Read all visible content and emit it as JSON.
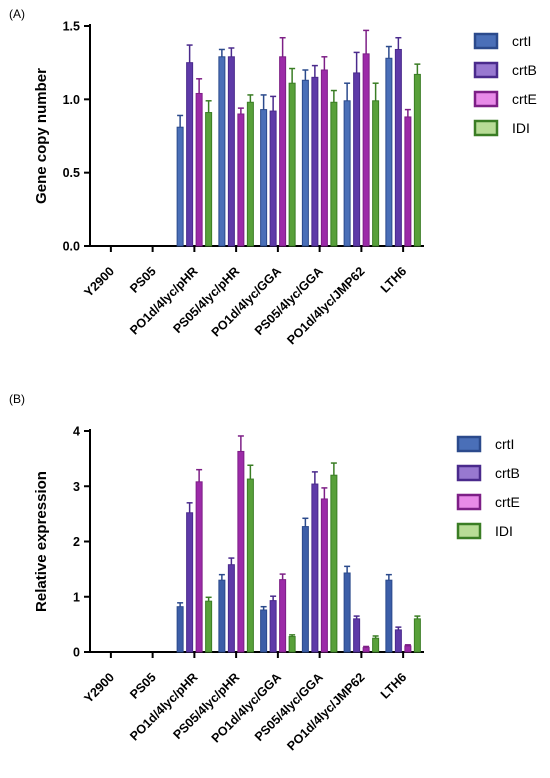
{
  "chart_data": [
    {
      "type": "bar",
      "panel_label": "(A)",
      "ylabel": "Gene copy number",
      "ylim": [
        0,
        1.5
      ],
      "yticks": [
        "0.0",
        "0.5",
        "1.0",
        "1.5"
      ],
      "categories": [
        "Y2900",
        "PS05",
        "PO1d/4lyc/pHR",
        "PS05/4lyc/pHR",
        "PO1d/4lyc/GGA",
        "PS05/4lyc/GGA",
        "PO1d/4lyc/JMP62",
        "LTH6"
      ],
      "legend_position": "top-right",
      "series": [
        {
          "name": "crtI",
          "stroke": "#2b4a8c",
          "fill": "#4a6fb8",
          "legend_fill": "#4a6fb8",
          "values": [
            null,
            null,
            0.81,
            1.29,
            0.93,
            1.13,
            0.99,
            1.28
          ],
          "errors": [
            null,
            null,
            0.08,
            0.05,
            0.1,
            0.07,
            0.12,
            0.08
          ]
        },
        {
          "name": "crtB",
          "stroke": "#4a2a8c",
          "fill": "#5e3aa8",
          "legend_fill": "#9878d0",
          "values": [
            null,
            null,
            1.25,
            1.29,
            0.92,
            1.15,
            1.18,
            1.34
          ],
          "errors": [
            null,
            null,
            0.12,
            0.06,
            0.1,
            0.08,
            0.14,
            0.08
          ]
        },
        {
          "name": "crtE",
          "stroke": "#7d1f86",
          "fill": "#9c2aa8",
          "legend_fill": "#e88ae8",
          "values": [
            null,
            null,
            1.04,
            0.9,
            1.29,
            1.2,
            1.31,
            0.88
          ],
          "errors": [
            null,
            null,
            0.1,
            0.04,
            0.13,
            0.09,
            0.16,
            0.05
          ]
        },
        {
          "name": "IDI",
          "stroke": "#3a7d24",
          "fill": "#58a03a",
          "legend_fill": "#b8dc96",
          "values": [
            null,
            null,
            0.91,
            0.98,
            1.11,
            0.98,
            0.99,
            1.17
          ],
          "errors": [
            null,
            null,
            0.08,
            0.05,
            0.1,
            0.08,
            0.12,
            0.07
          ]
        }
      ]
    },
    {
      "type": "bar",
      "panel_label": "(B)",
      "ylabel": "Relative expression",
      "ylim": [
        0,
        4
      ],
      "yticks": [
        "0",
        "1",
        "2",
        "3",
        "4"
      ],
      "categories": [
        "Y2900",
        "PS05",
        "PO1d/4lyc/pHR",
        "PS05/4lyc/pHR",
        "PO1d/4lyc/GGA",
        "PS05/4lyc/GGA",
        "PO1d/4lyc/JMP62",
        "LTH6"
      ],
      "legend_position": "top-right",
      "series": [
        {
          "name": "crtI",
          "stroke": "#2b4a8c",
          "fill": "#3c5ea8",
          "legend_fill": "#4a6fb8",
          "values": [
            null,
            null,
            0.82,
            1.3,
            0.76,
            2.27,
            1.43,
            1.3
          ],
          "errors": [
            null,
            null,
            0.07,
            0.1,
            0.06,
            0.15,
            0.12,
            0.1
          ]
        },
        {
          "name": "crtB",
          "stroke": "#4a2a8c",
          "fill": "#5e3aa8",
          "legend_fill": "#9878d0",
          "values": [
            null,
            null,
            2.52,
            1.58,
            0.93,
            3.04,
            0.6,
            0.4
          ],
          "errors": [
            null,
            null,
            0.18,
            0.12,
            0.08,
            0.22,
            0.05,
            0.05
          ]
        },
        {
          "name": "crtE",
          "stroke": "#7d1f86",
          "fill": "#9c2aa8",
          "legend_fill": "#e88ae8",
          "values": [
            null,
            null,
            3.08,
            3.63,
            1.31,
            2.77,
            0.08,
            0.11
          ],
          "errors": [
            null,
            null,
            0.22,
            0.28,
            0.1,
            0.2,
            0.02,
            0.02
          ]
        },
        {
          "name": "IDI",
          "stroke": "#3a7d24",
          "fill": "#58a03a",
          "legend_fill": "#b8dc96",
          "values": [
            null,
            null,
            0.92,
            3.13,
            0.28,
            3.2,
            0.25,
            0.6
          ],
          "errors": [
            null,
            null,
            0.07,
            0.25,
            0.03,
            0.22,
            0.04,
            0.05
          ]
        }
      ]
    }
  ]
}
